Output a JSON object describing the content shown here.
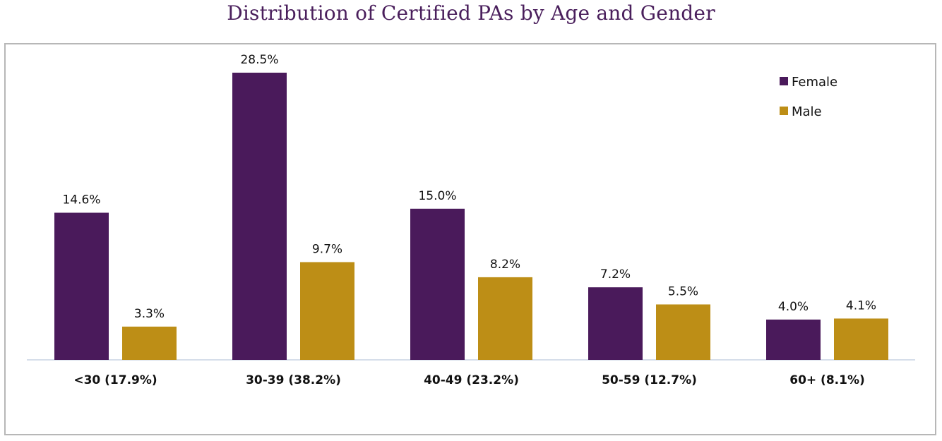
{
  "chart_data": {
    "type": "bar",
    "title": "Distribution of Certified PAs by Age and Gender",
    "categories": [
      "<30 (17.9%)",
      "30-39 (38.2%)",
      "40-49 (23.2%)",
      "50-59 (12.7%)",
      "60+ (8.1%)"
    ],
    "series": [
      {
        "name": "Female",
        "color": "#4a1a5b",
        "values": [
          14.6,
          28.5,
          15.0,
          7.2,
          4.0
        ],
        "labels": [
          "14.6%",
          "28.5%",
          "15.0%",
          "7.2%",
          "4.0%"
        ]
      },
      {
        "name": "Male",
        "color": "#bd8e16",
        "values": [
          3.3,
          9.7,
          8.2,
          5.5,
          4.1
        ],
        "labels": [
          "3.3%",
          "9.7%",
          "8.2%",
          "5.5%",
          "4.1%"
        ]
      }
    ],
    "ylim": [
      0,
      30
    ],
    "grid": false,
    "legend_position": "top-right"
  }
}
